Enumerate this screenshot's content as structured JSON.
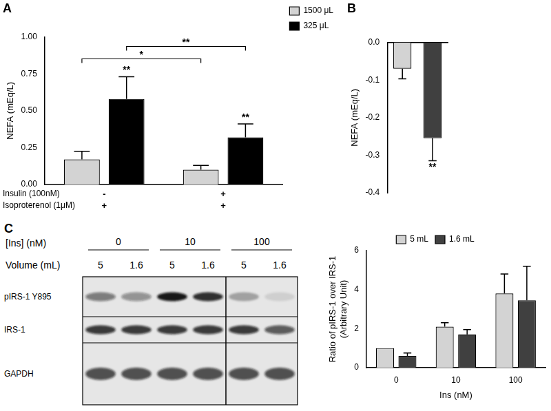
{
  "chart_data": [
    {
      "type": "bar",
      "title": "A",
      "y_label": "NEFA (mEq/L)",
      "categories": [
        null,
        null
      ],
      "x_rows": [
        {
          "label": "Insulin (100nM)",
          "values": [
            "-",
            "+"
          ]
        },
        {
          "label": "Isoproterenol (1μM)",
          "values": [
            "+",
            "+"
          ]
        }
      ],
      "series": [
        {
          "name": "1500 μL",
          "color": "#d3d3d3",
          "values": [
            0.17,
            0.1
          ],
          "errors": [
            0.055,
            0.03
          ]
        },
        {
          "name": "325 μL",
          "color": "#000000",
          "values": [
            0.58,
            0.32
          ],
          "errors": [
            0.15,
            0.09
          ]
        }
      ],
      "annotations": [
        {
          "text": "**",
          "series": 1,
          "category": 0
        },
        {
          "text": "**",
          "series": 1,
          "category": 1
        },
        {
          "text": "*",
          "bracket": [
            [
              0,
              0
            ],
            [
              0,
              1
            ]
          ]
        },
        {
          "text": "**",
          "bracket": [
            [
              1,
              0
            ],
            [
              1,
              1
            ]
          ]
        }
      ],
      "ylim": [
        0,
        1
      ],
      "yticks": [
        {
          "value": 0,
          "label": "0.00"
        },
        {
          "value": 0.25,
          "label": "0.25"
        },
        {
          "value": 0.5,
          "label": "0.50"
        },
        {
          "value": 0.75,
          "label": "0.75"
        },
        {
          "value": 1,
          "label": "1.00"
        }
      ],
      "grid": false,
      "legend": "right"
    },
    {
      "type": "bar",
      "title": "B",
      "y_label": "NEFA (mEq/L)",
      "categories": [
        null,
        null
      ],
      "values": [
        -0.07,
        -0.255
      ],
      "errors": [
        0.027,
        0.06
      ],
      "colors": [
        "#d3d3d3",
        "#404040"
      ],
      "annotations": [
        {
          "text": "**",
          "category": 1
        }
      ],
      "ylim": [
        -0.4,
        0
      ],
      "yticks": [
        -0.4,
        -0.3,
        -0.2,
        -0.1,
        {
          "value": 0,
          "label": "0.0"
        }
      ],
      "grid": false
    },
    {
      "type": "bar",
      "x_label": "Ins (nM)",
      "y_label": [
        "Ratio of pIRS-1 over IRS-1",
        "(Arbitrary Unit)"
      ],
      "categories": [
        "0",
        "10",
        "100"
      ],
      "series": [
        {
          "name": "5 mL",
          "color": "#d3d3d3",
          "values": [
            1.0,
            2.1,
            3.8
          ],
          "errors": [
            0,
            0.2,
            1.0
          ]
        },
        {
          "name": "1.6 mL",
          "color": "#404040",
          "values": [
            0.6,
            1.7,
            3.45
          ],
          "errors": [
            0.15,
            0.25,
            1.75
          ]
        }
      ],
      "ylim": [
        0,
        6
      ],
      "yticks": [
        0,
        2,
        4,
        6
      ],
      "grid": false,
      "legend": "top"
    }
  ],
  "blot": {
    "panel": "C",
    "ins_label": "[Ins] (nM)",
    "ins_groups": [
      "0",
      "10",
      "100"
    ],
    "volume_label": "Volume (mL)",
    "volumes": [
      "5",
      "1.6",
      "5",
      "1.6",
      "5",
      "1.6"
    ],
    "rows": [
      {
        "label": "pIRS-1 Y895",
        "intensities": [
          0.5,
          0.4,
          0.95,
          0.85,
          0.3,
          0.1
        ]
      },
      {
        "label": "IRS-1",
        "intensities": [
          0.8,
          0.8,
          0.8,
          0.8,
          0.8,
          0.65
        ]
      },
      {
        "label": "GAPDH",
        "intensities": [
          0.7,
          0.7,
          0.7,
          0.7,
          0.7,
          0.7
        ]
      }
    ]
  }
}
